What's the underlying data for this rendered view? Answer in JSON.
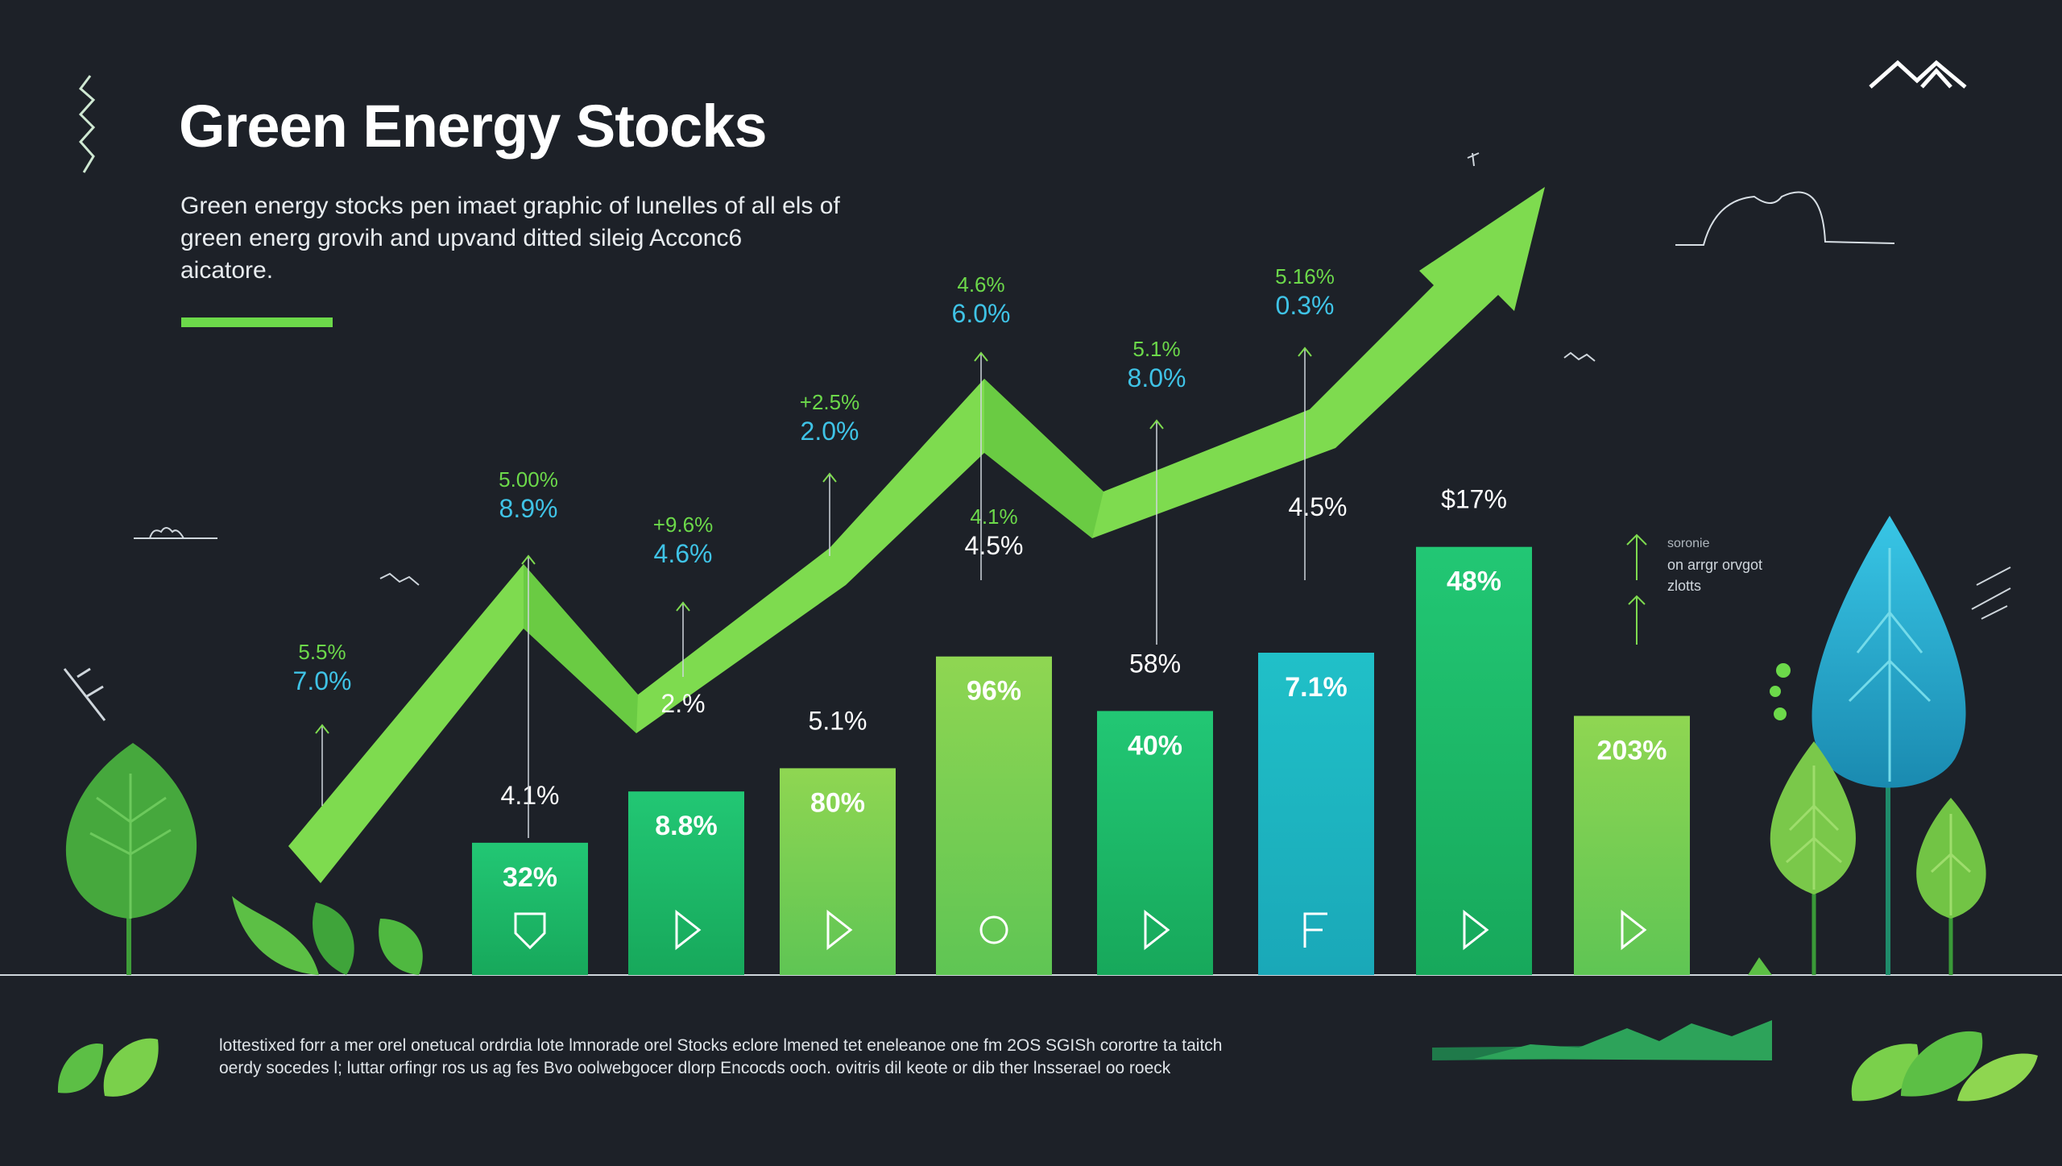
{
  "header": {
    "title": "Green Energy Stocks",
    "subtitle": "Green energy stocks pen imaet graphic of lunelles of all els of green energ grovih and upvand ditted sileig Acconc6 aicatore."
  },
  "side_note": {
    "line1": "soronie",
    "line2": "on arrgr orvgot",
    "line3": "zlotts"
  },
  "footer": {
    "line1": "lottestixed forr a mer orel onetucal ordrdia lote lmnorade orel Stocks eclore lmened tet eneleanoe one fm 2OS SGISh corortre ta taitch",
    "line2": "oerdy socedes l; luttar orfingr ros us ag fes Bvo oolwebgocer dlorp Encocds ooch. ovitris dil keote or dib ther lnsserael oo roeck"
  },
  "colors": {
    "background": "#1d2128",
    "bar_gradient_top_green": "#8ed650",
    "bar_green": "#1fbf6a",
    "bar_teal": "#1fb8c4",
    "arrow": "#7edb4f",
    "label_green": "#6cd94a",
    "label_cyan": "#3fc3e6"
  },
  "chart_data": {
    "type": "bar",
    "title": "Green Energy Stocks",
    "xlabel": "",
    "ylabel": "",
    "grid": false,
    "bars": [
      {
        "value_label": "32%",
        "top_label": "4.1%",
        "icon": "shield-icon",
        "color": "#1fbf6a",
        "height_frac": 0.245
      },
      {
        "value_label": "8.8%",
        "top_label": "",
        "icon": "play-icon",
        "color": "#1fbf6a",
        "height_frac": 0.34
      },
      {
        "value_label": "80%",
        "top_label": "5.1%",
        "icon": "play-icon",
        "color": "#61cc55",
        "height_frac": 0.383
      },
      {
        "value_label": "96%",
        "top_label": "",
        "icon": "circle-icon",
        "color": "#8ed650",
        "height_frac": 0.59
      },
      {
        "value_label": "40%",
        "top_label": "58%",
        "icon": "play-icon",
        "color": "#1fbf6a",
        "height_frac": 0.489
      },
      {
        "value_label": "7.1%",
        "top_label": "",
        "icon": "f-letter-icon",
        "color": "#1fb8c4",
        "height_frac": 0.597
      },
      {
        "value_label": "48%",
        "top_label": "$17%",
        "icon": "play-icon",
        "color": "#1fbf6a",
        "height_frac": 0.793
      },
      {
        "value_label": "203%",
        "top_label": "",
        "icon": "play-icon",
        "color": "#8ed650",
        "height_frac": 0.48
      }
    ],
    "line_annotations": [
      {
        "label_top": "5.5%",
        "label_bottom": "7.0%"
      },
      {
        "label_top": "5.00%",
        "label_bottom": "8.9%"
      },
      {
        "label_top": "+9.6%",
        "label_bottom": "4.6%"
      },
      {
        "label_top": "",
        "label_bottom": "2.%"
      },
      {
        "label_top": "+2.5%",
        "label_bottom": "2.0%"
      },
      {
        "label_top": "4.1%",
        "label_bottom": "4.5%"
      },
      {
        "label_top": "4.6%",
        "label_bottom": "6.0%"
      },
      {
        "label_top": "5.1%",
        "label_bottom": "8.0%"
      },
      {
        "label_top": "",
        "label_bottom": "4.5%"
      },
      {
        "label_top": "5.16%",
        "label_bottom": "0.3%"
      }
    ],
    "trend_arrow": "up"
  }
}
